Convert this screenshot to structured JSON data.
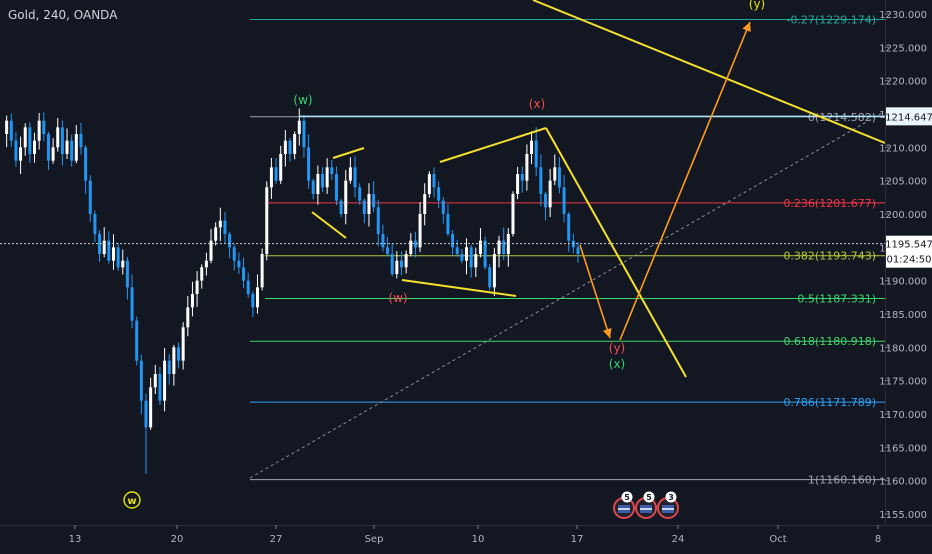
{
  "symbol_title": "Gold, 240, OANDA",
  "colors": {
    "background": "#131722",
    "candle_up": "#ffffff",
    "candle_down": "#2196f3",
    "trendline": "#f5e12b",
    "projection": "#ff9a1f",
    "diagonal": "#8a8e98",
    "wave_green": "#31d36f",
    "wave_red": "#f24e4e",
    "wave_yellow": "#e8e200"
  },
  "price_axis": {
    "ticks": [
      "1230.000",
      "1225.000",
      "1220.000",
      "1215.000",
      "1210.000",
      "1205.000",
      "1200.000",
      "1195.000",
      "1190.000",
      "1185.000",
      "1180.000",
      "1175.000",
      "1170.000",
      "1165.000",
      "1160.000",
      "1155.000"
    ],
    "tick_values": [
      1230,
      1225,
      1220,
      1215,
      1210,
      1205,
      1200,
      1195,
      1190,
      1185,
      1180,
      1175,
      1170,
      1165,
      1160,
      1155
    ],
    "current_price": "1195.547",
    "countdown": "01:24:50",
    "line_label": "1214.647"
  },
  "time_axis": {
    "labels": [
      "13",
      "20",
      "27",
      "Sep",
      "10",
      "17",
      "24",
      "Oct",
      "8"
    ]
  },
  "fib_levels": [
    {
      "label": "-0.27(1229.174)",
      "value": 1229.174,
      "color": "#26a69a"
    },
    {
      "label": "0(1214.582)",
      "value": 1214.582,
      "color": "#9fa3ad"
    },
    {
      "label": "0.236(1201.677)",
      "value": 1201.677,
      "color": "#f23645"
    },
    {
      "label": "0.382(1193.743)",
      "value": 1193.743,
      "color": "#b4c83c"
    },
    {
      "label": "0.5(1187.331)",
      "value": 1187.331,
      "color": "#3fd46a"
    },
    {
      "label": "0.618(1180.918)",
      "value": 1180.918,
      "color": "#3fd46a"
    },
    {
      "label": "0.786(1171.789)",
      "value": 1171.789,
      "color": "#2e9ff5"
    },
    {
      "label": "1(1160.160)",
      "value": 1160.16,
      "color": "#9fa3ad"
    }
  ],
  "wave_labels": [
    {
      "text": "(w)",
      "color": "#31d36f"
    },
    {
      "text": "(x)",
      "color": "#f24e4e"
    },
    {
      "text": "(y)",
      "color": "#e8e200"
    },
    {
      "text": "(w)",
      "color": "#f24e4e"
    },
    {
      "text": "(y)",
      "color": "#f24e4e"
    },
    {
      "text": "(x)",
      "color": "#31d36f"
    },
    {
      "text": "w",
      "color": "#e8e200"
    }
  ],
  "event_badges": [
    "5",
    "5",
    "3"
  ],
  "chart_data": {
    "type": "candlestick",
    "title": "Gold, 240, OANDA",
    "xlabel": "",
    "ylabel": "",
    "ylim": [
      1154,
      1233
    ],
    "x_ticks": [
      "13",
      "20",
      "27",
      "Sep",
      "10",
      "17",
      "24",
      "Oct",
      "8"
    ],
    "y_ticks": [
      1230,
      1225,
      1220,
      1215,
      1210,
      1205,
      1200,
      1195,
      1190,
      1185,
      1180,
      1175,
      1170,
      1165,
      1160,
      1155
    ],
    "grid": false,
    "price_path": [
      1212,
      1214,
      1211,
      1208,
      1210,
      1213,
      1209,
      1211,
      1214,
      1212,
      1208,
      1210,
      1213,
      1209,
      1211,
      1208,
      1212,
      1210,
      1205,
      1200,
      1197,
      1194,
      1196,
      1193,
      1195,
      1192,
      1193,
      1189,
      1184,
      1178,
      1172,
      1168,
      1174,
      1176,
      1172,
      1178,
      1176,
      1180,
      1178,
      1183,
      1186,
      1188,
      1190,
      1192,
      1193,
      1196,
      1198,
      1199,
      1197,
      1195,
      1193,
      1192,
      1190,
      1188,
      1186,
      1189,
      1194,
      1204,
      1207,
      1205,
      1209,
      1211,
      1209,
      1212,
      1214,
      1210,
      1205,
      1203,
      1206,
      1204,
      1207,
      1206,
      1202,
      1200,
      1205,
      1207,
      1204,
      1202,
      1200,
      1203,
      1201,
      1197,
      1195,
      1194,
      1191,
      1193,
      1192,
      1194,
      1196,
      1195,
      1200,
      1203,
      1206,
      1204,
      1202,
      1200,
      1197,
      1195,
      1194,
      1193,
      1195,
      1192,
      1194,
      1196,
      1192,
      1189,
      1194,
      1196,
      1194,
      1197,
      1203,
      1206,
      1205,
      1209,
      1211,
      1207,
      1203,
      1201,
      1205,
      1207,
      1204,
      1200,
      1196,
      1195,
      1194
    ],
    "current_price": 1195.547,
    "horizontal_line": 1214.647
  }
}
